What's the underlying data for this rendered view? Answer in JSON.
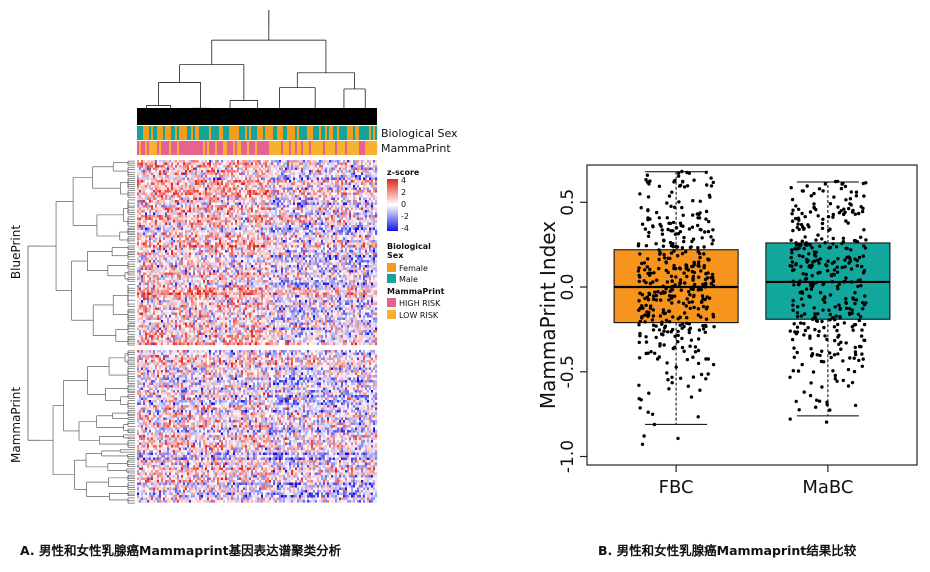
{
  "chart_data": [
    {
      "type": "heatmap",
      "panel": "A",
      "title": "男性和女性乳腺癌Mammaprint基因表达谱聚类分析",
      "row_groups": [
        "BluePrint",
        "MammaPrint"
      ],
      "annotation_tracks": [
        "Biological Sex",
        "MammaPrint"
      ],
      "colorbar": {
        "title": "z-score",
        "ticks": [
          4,
          2,
          0,
          -2,
          -4
        ],
        "colors": [
          "#e5261c",
          "#ffffff",
          "#1414e6"
        ]
      },
      "legend_groups": [
        {
          "title_lines": [
            "Biological",
            "Sex"
          ],
          "entries": [
            {
              "label": "Female",
              "color": "#f39c1e"
            },
            {
              "label": "Male",
              "color": "#15a39a"
            }
          ]
        },
        {
          "title_lines": [
            "MammaPrint"
          ],
          "entries": [
            {
              "label": "HIGH RISK",
              "color": "#e8628f"
            },
            {
              "label": "LOW RISK",
              "color": "#f5b22e"
            }
          ]
        }
      ]
    },
    {
      "type": "boxplot",
      "panel": "B",
      "title": "男性和女性乳腺癌Mammaprint结果比较",
      "ylabel": "MammaPrint Index",
      "ylim": [
        -1.05,
        0.72
      ],
      "yticks": [
        -1.0,
        -0.5,
        0.0,
        0.5
      ],
      "ytick_labels": [
        "-1.0",
        "-0.5",
        "0.0",
        "0.5"
      ],
      "categories": [
        "FBC",
        "MaBC"
      ],
      "colors": [
        "#f7941d",
        "#13a89e"
      ],
      "boxes": [
        {
          "name": "FBC",
          "whisker_low": -0.81,
          "q1": -0.21,
          "median": 0.0,
          "q3": 0.22,
          "whisker_high": 0.68,
          "n_points": 420
        },
        {
          "name": "MaBC",
          "whisker_low": -0.76,
          "q1": -0.19,
          "median": 0.03,
          "q3": 0.26,
          "whisker_high": 0.62,
          "n_points": 380
        }
      ]
    }
  ],
  "captions": {
    "a": "A. 男性和女性乳腺癌Mammaprint基因表达谱聚类分析",
    "b": "B. 男性和女性乳腺癌Mammaprint结果比较"
  }
}
